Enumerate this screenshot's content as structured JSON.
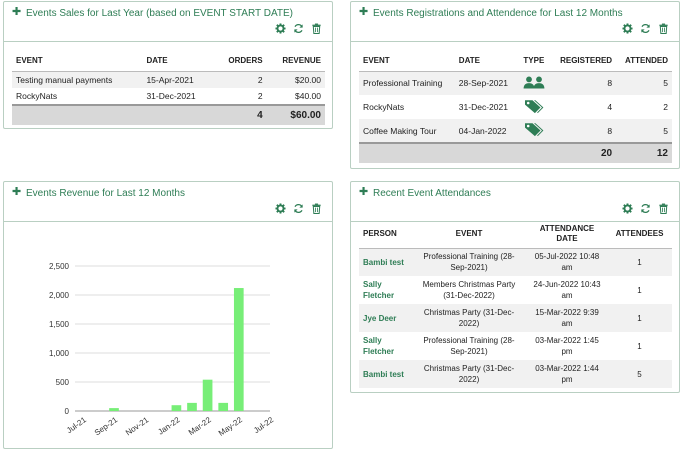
{
  "colors": {
    "accent": "#2e7d55",
    "bar": "#77ee77",
    "border": "#b9cfc2"
  },
  "panel_sales": {
    "title": "Events Sales for Last Year (based on EVENT START DATE)",
    "columns": [
      "EVENT",
      "DATE",
      "ORDERS",
      "REVENUE"
    ],
    "rows": [
      {
        "event": "Testing manual payments",
        "date": "15-Apr-2021",
        "orders": "2",
        "revenue": "$20.00"
      },
      {
        "event": "RockyNats",
        "date": "31-Dec-2021",
        "orders": "2",
        "revenue": "$40.00"
      }
    ],
    "total_orders": "4",
    "total_revenue": "$60.00"
  },
  "panel_regs": {
    "title": "Events Registrations and Attendence for Last 12 Months",
    "columns": [
      "EVENT",
      "DATE",
      "TYPE",
      "REGISTERED",
      "ATTENDED"
    ],
    "rows": [
      {
        "event": "Professional Training",
        "date": "28-Sep-2021",
        "type_icon": "users-icon",
        "registered": "8",
        "attended": "5"
      },
      {
        "event": "RockyNats",
        "date": "31-Dec-2021",
        "type_icon": "tag-icon",
        "registered": "4",
        "attended": "2"
      },
      {
        "event": "Coffee Making Tour",
        "date": "04-Jan-2022",
        "type_icon": "tag-icon",
        "registered": "8",
        "attended": "5"
      }
    ],
    "total_registered": "20",
    "total_attended": "12"
  },
  "panel_revenue": {
    "title": "Events Revenue for Last 12 Months"
  },
  "chart_data": {
    "type": "bar",
    "title": "",
    "xlabel": "",
    "ylabel": "",
    "categories": [
      "Jul-21",
      "Aug-21",
      "Sep-21",
      "Oct-21",
      "Nov-21",
      "Dec-21",
      "Jan-22",
      "Feb-22",
      "Mar-22",
      "Apr-22",
      "May-22",
      "Jun-22",
      "Jul-22"
    ],
    "tick_labels": [
      "Jul-21",
      "Sep-21",
      "Nov-21",
      "Jan-22",
      "Mar-22",
      "May-22",
      "Jul-22"
    ],
    "values": [
      0,
      0,
      50,
      0,
      0,
      0,
      100,
      140,
      540,
      140,
      2120,
      0,
      0
    ],
    "ylim": [
      0,
      2500
    ],
    "yticks": [
      "0",
      "500",
      "1,000",
      "1,500",
      "2,000",
      "2,500"
    ],
    "grid": true,
    "legend": "none"
  },
  "panel_recent": {
    "title": "Recent Event Attendances",
    "columns": [
      "PERSON",
      "EVENT",
      "ATTENDANCE DATE",
      "ATTENDEES"
    ],
    "rows": [
      {
        "person": "Bambi test",
        "event": "Professional Training (28-Sep-2021)",
        "date": "05-Jul-2022 10:48 am",
        "attendees": "1"
      },
      {
        "person": "Sally Fletcher",
        "event": "Members Christmas Party (31-Dec-2022)",
        "date": "24-Jun-2022 10:43 am",
        "attendees": "1"
      },
      {
        "person": "Jye Deer",
        "event": "Christmas Party (31-Dec-2022)",
        "date": "15-Mar-2022 9:39 am",
        "attendees": "1"
      },
      {
        "person": "Sally Fletcher",
        "event": "Professional Training (28-Sep-2021)",
        "date": "03-Mar-2022 1:45 pm",
        "attendees": "1"
      },
      {
        "person": "Bambi test",
        "event": "Christmas Party (31-Dec-2022)",
        "date": "03-Mar-2022 1:44 pm",
        "attendees": "5"
      }
    ]
  }
}
